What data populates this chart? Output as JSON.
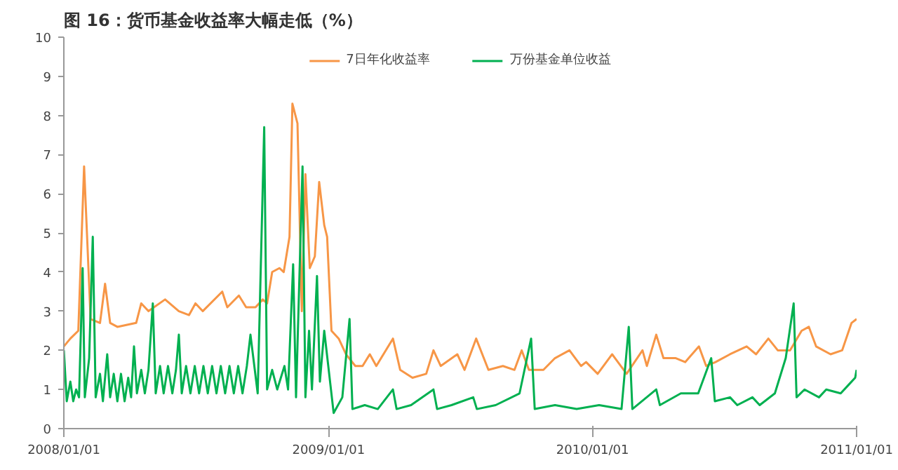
{
  "chart_data": {
    "type": "line",
    "title": "图 16：货币基金收益率大幅走低（%）",
    "legend": "top",
    "marker": "none",
    "line_style": "solid",
    "grid": false,
    "xlim": [
      "2008-01-01",
      "2011-01-01"
    ],
    "xticks": [
      {
        "value": "2008-01-01",
        "label": "2008/01/01"
      },
      {
        "value": "2009-01-01",
        "label": "2009/01/01"
      },
      {
        "value": "2010-01-01",
        "label": "2010/01/01"
      },
      {
        "value": "2011-01-01",
        "label": "2011/01/01"
      }
    ],
    "ylim": [
      0,
      10
    ],
    "yticks": [
      0,
      1,
      2,
      3,
      4,
      5,
      6,
      7,
      8,
      9,
      10
    ],
    "series": [
      {
        "name": "7日年化收益率",
        "color": "#f79646",
        "x": [
          "2008-01-01",
          "2008-01-10",
          "2008-01-21",
          "2008-01-29",
          "2008-02-07",
          "2008-02-20",
          "2008-02-27",
          "2008-03-05",
          "2008-03-15",
          "2008-04-10",
          "2008-04-17",
          "2008-04-27",
          "2008-05-20",
          "2008-06-08",
          "2008-06-22",
          "2008-07-01",
          "2008-07-11",
          "2008-08-07",
          "2008-08-14",
          "2008-08-30",
          "2008-09-09",
          "2008-09-22",
          "2008-10-02",
          "2008-10-08",
          "2008-10-15",
          "2008-10-25",
          "2008-10-31",
          "2008-11-08",
          "2008-11-12",
          "2008-11-19",
          "2008-11-25",
          "2008-11-30",
          "2008-12-06",
          "2008-12-13",
          "2008-12-19",
          "2008-12-26",
          "2008-12-30",
          "2009-01-05",
          "2009-01-15",
          "2009-01-25",
          "2009-02-07",
          "2009-02-17",
          "2009-02-27",
          "2009-03-08",
          "2009-03-31",
          "2009-04-10",
          "2009-04-27",
          "2009-05-16",
          "2009-05-26",
          "2009-06-05",
          "2009-06-28",
          "2009-07-08",
          "2009-07-24",
          "2009-08-10",
          "2009-08-30",
          "2009-09-15",
          "2009-09-25",
          "2009-10-05",
          "2009-10-25",
          "2009-11-10",
          "2009-11-30",
          "2009-12-16",
          "2009-12-23",
          "2010-01-08",
          "2010-01-28",
          "2010-02-17",
          "2010-03-11",
          "2010-03-17",
          "2010-03-30",
          "2010-04-09",
          "2010-04-26",
          "2010-05-09",
          "2010-05-28",
          "2010-06-07",
          "2010-06-20",
          "2010-07-10",
          "2010-08-02",
          "2010-08-15",
          "2010-09-01",
          "2010-09-14",
          "2010-10-01",
          "2010-10-17",
          "2010-10-27",
          "2010-11-06",
          "2010-11-26",
          "2010-12-12",
          "2010-12-25",
          "2011-01-01"
        ],
        "values": [
          2.1,
          2.3,
          2.5,
          6.7,
          2.8,
          2.7,
          3.7,
          2.7,
          2.6,
          2.7,
          3.2,
          3.0,
          3.3,
          3.0,
          2.9,
          3.2,
          3.0,
          3.5,
          3.1,
          3.4,
          3.1,
          3.1,
          3.3,
          3.2,
          4.0,
          4.1,
          4.0,
          4.9,
          8.3,
          7.8,
          3.0,
          6.5,
          4.1,
          4.4,
          6.3,
          5.2,
          4.9,
          2.5,
          2.3,
          1.9,
          1.6,
          1.6,
          1.9,
          1.6,
          2.3,
          1.5,
          1.3,
          1.4,
          2.0,
          1.6,
          1.9,
          1.5,
          2.3,
          1.5,
          1.6,
          1.5,
          2.0,
          1.5,
          1.5,
          1.8,
          2.0,
          1.6,
          1.7,
          1.4,
          1.9,
          1.4,
          2.0,
          1.6,
          2.4,
          1.8,
          1.8,
          1.7,
          2.1,
          1.6,
          1.7,
          1.9,
          2.1,
          1.9,
          2.3,
          2.0,
          2.0,
          2.5,
          2.6,
          2.1,
          1.9,
          2.0,
          2.7,
          2.8
        ]
      },
      {
        "name": "万份基金单位收益",
        "color": "#00b050",
        "x": [
          "2008-01-01",
          "2008-01-05",
          "2008-01-10",
          "2008-01-14",
          "2008-01-18",
          "2008-01-22",
          "2008-01-27",
          "2008-01-30",
          "2008-02-05",
          "2008-02-10",
          "2008-02-14",
          "2008-02-20",
          "2008-02-24",
          "2008-03-01",
          "2008-03-05",
          "2008-03-10",
          "2008-03-15",
          "2008-03-20",
          "2008-03-25",
          "2008-03-30",
          "2008-04-03",
          "2008-04-07",
          "2008-04-11",
          "2008-04-17",
          "2008-04-22",
          "2008-04-27",
          "2008-05-03",
          "2008-05-07",
          "2008-05-13",
          "2008-05-18",
          "2008-05-24",
          "2008-05-30",
          "2008-06-04",
          "2008-06-08",
          "2008-06-12",
          "2008-06-18",
          "2008-06-24",
          "2008-06-30",
          "2008-07-06",
          "2008-07-12",
          "2008-07-18",
          "2008-07-24",
          "2008-07-30",
          "2008-08-05",
          "2008-08-11",
          "2008-08-17",
          "2008-08-23",
          "2008-08-29",
          "2008-09-04",
          "2008-09-10",
          "2008-09-15",
          "2008-09-25",
          "2008-10-04",
          "2008-10-08",
          "2008-10-15",
          "2008-10-22",
          "2008-11-01",
          "2008-11-06",
          "2008-11-13",
          "2008-11-17",
          "2008-11-26",
          "2008-11-30",
          "2008-12-05",
          "2008-12-09",
          "2008-12-16",
          "2008-12-20",
          "2008-12-26",
          "2009-01-08",
          "2009-01-20",
          "2009-01-30",
          "2009-02-03",
          "2009-02-20",
          "2009-03-10",
          "2009-03-31",
          "2009-04-05",
          "2009-04-25",
          "2009-05-26",
          "2009-05-31",
          "2009-06-20",
          "2009-07-20",
          "2009-07-25",
          "2009-08-20",
          "2009-09-22",
          "2009-10-08",
          "2009-10-13",
          "2009-11-10",
          "2009-12-10",
          "2010-01-10",
          "2010-02-10",
          "2010-02-20",
          "2010-02-25",
          "2010-03-30",
          "2010-04-04",
          "2010-05-03",
          "2010-05-27",
          "2010-06-14",
          "2010-06-19",
          "2010-07-10",
          "2010-07-20",
          "2010-08-10",
          "2010-08-20",
          "2010-09-10",
          "2010-09-25",
          "2010-10-06",
          "2010-10-10",
          "2010-10-21",
          "2010-11-10",
          "2010-11-20",
          "2010-12-10",
          "2010-12-20",
          "2010-12-30",
          "2011-01-01"
        ],
        "values": [
          2.0,
          0.7,
          1.2,
          0.7,
          1.0,
          0.8,
          4.1,
          0.8,
          1.8,
          4.9,
          0.8,
          1.4,
          0.7,
          1.9,
          0.8,
          1.4,
          0.7,
          1.4,
          0.7,
          1.3,
          0.8,
          2.1,
          0.9,
          1.5,
          0.9,
          1.5,
          3.2,
          0.9,
          1.6,
          0.9,
          1.6,
          0.9,
          1.5,
          2.4,
          0.9,
          1.6,
          0.9,
          1.6,
          0.9,
          1.6,
          0.9,
          1.6,
          0.9,
          1.6,
          0.9,
          1.6,
          0.9,
          1.6,
          0.9,
          1.6,
          2.4,
          0.9,
          7.7,
          1.0,
          1.5,
          1.0,
          1.6,
          1.0,
          4.2,
          0.8,
          6.7,
          0.8,
          2.5,
          1.0,
          3.9,
          1.2,
          2.5,
          0.4,
          0.8,
          2.8,
          0.5,
          0.6,
          0.5,
          1.0,
          0.5,
          0.6,
          1.0,
          0.5,
          0.6,
          0.8,
          0.5,
          0.6,
          0.9,
          2.3,
          0.5,
          0.6,
          0.5,
          0.6,
          0.5,
          2.6,
          0.5,
          1.0,
          0.6,
          0.9,
          0.9,
          1.8,
          0.7,
          0.8,
          0.6,
          0.8,
          0.6,
          0.9,
          1.8,
          3.2,
          0.8,
          1.0,
          0.8,
          1.0,
          0.9,
          1.1,
          1.3,
          1.5
        ]
      }
    ]
  }
}
